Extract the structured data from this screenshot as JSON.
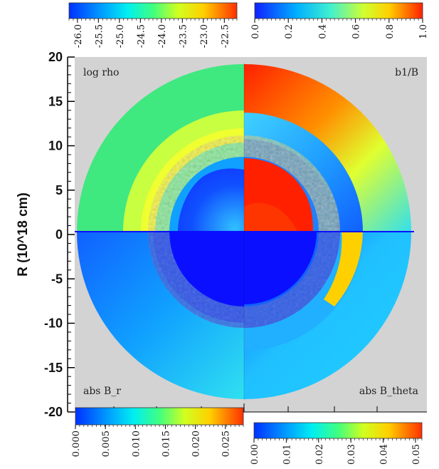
{
  "figure": {
    "ylabel": "R (10^18 cm)",
    "y_ticks": [
      "20",
      "15",
      "10",
      "5",
      "0",
      "-5",
      "-10",
      "-15",
      "-20"
    ],
    "panels": {
      "top_left": "log rho",
      "top_right": "b1/B",
      "bottom_left": "abs B_r",
      "bottom_right": "abs B_theta"
    },
    "colorbars": {
      "top_left": {
        "ticks": [
          "-26.0",
          "-25.5",
          "-25.0",
          "-24.5",
          "-24.0",
          "-23.5",
          "-23.0",
          "-22.5"
        ],
        "range": [
          -26.2,
          -22.2
        ]
      },
      "top_right": {
        "ticks": [
          "0.0",
          "0.2",
          "0.4",
          "0.6",
          "0.8",
          "1.0"
        ],
        "range": [
          0.0,
          1.0
        ]
      },
      "bottom_left": {
        "ticks": [
          "0.000",
          "0.005",
          "0.010",
          "0.015",
          "0.020",
          "0.025"
        ],
        "range": [
          0.0,
          0.028
        ]
      },
      "bottom_right": {
        "ticks": [
          "0.00",
          "0.01",
          "0.02",
          "0.03",
          "0.04",
          "0.05"
        ],
        "range": [
          0.0,
          0.052
        ]
      }
    },
    "colors": {
      "background": "#d3d3d3",
      "jet_low": "#1010ff",
      "jet_high": "#ff2000"
    }
  }
}
